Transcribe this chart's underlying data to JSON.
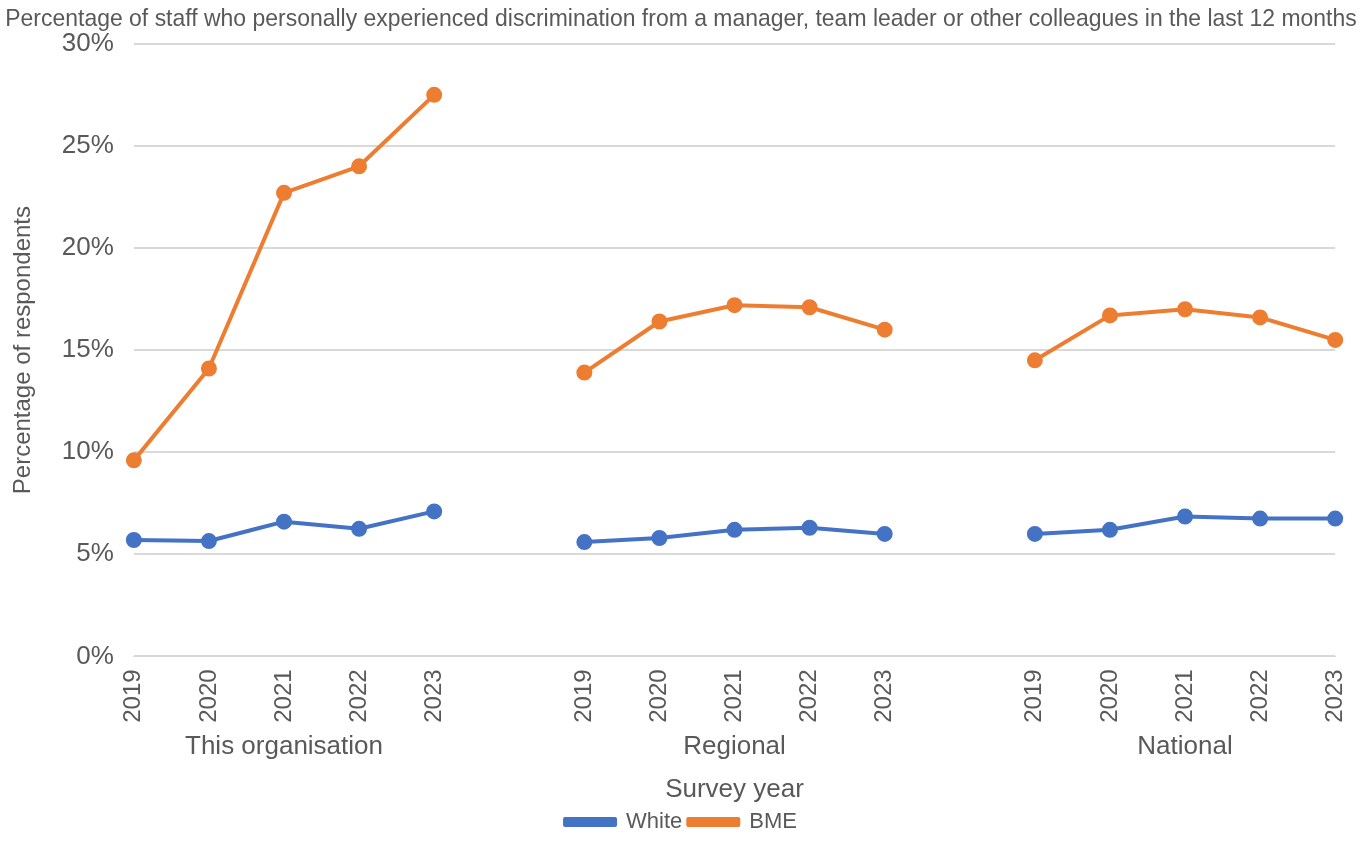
{
  "chart_data": {
    "type": "line",
    "title": "Percentage of staff who personally experienced discrimination from a manager, team leader or other colleagues in the last 12 months",
    "xlabel": "Survey year",
    "ylabel": "Percentage of respondents",
    "categories": [
      "2019",
      "2020",
      "2021",
      "2022",
      "2023",
      null,
      "2019",
      "2020",
      "2021",
      "2022",
      "2023",
      null,
      "2019",
      "2020",
      "2021",
      "2022",
      "2023"
    ],
    "series": [
      {
        "name": "White",
        "color": "#4472c4",
        "values": [
          5.7,
          5.65,
          6.6,
          6.25,
          7.1,
          null,
          5.6,
          5.8,
          6.2,
          6.3,
          6.0,
          null,
          6.0,
          6.2,
          6.85,
          6.75,
          6.75
        ]
      },
      {
        "name": "BME",
        "color": "#ed7d31",
        "values": [
          9.6,
          14.1,
          22.7,
          24.0,
          27.5,
          null,
          13.9,
          16.4,
          17.2,
          17.1,
          16.0,
          null,
          14.5,
          16.7,
          17.0,
          16.6,
          15.5
        ]
      }
    ],
    "annotations": [
      "This organisation",
      "Regional",
      "National"
    ],
    "ylim": [
      0,
      30
    ],
    "yticks": [
      {
        "value": 0,
        "label": "0%"
      },
      {
        "value": 5,
        "label": "5%"
      },
      {
        "value": 10,
        "label": "10%"
      },
      {
        "value": 15,
        "label": "15%"
      },
      {
        "value": 20,
        "label": "20%"
      },
      {
        "value": 25,
        "label": "25%"
      },
      {
        "value": 30,
        "label": "30%"
      }
    ],
    "grid": "y",
    "legend": "bottom",
    "marker": "circle",
    "line_style": "solid"
  }
}
